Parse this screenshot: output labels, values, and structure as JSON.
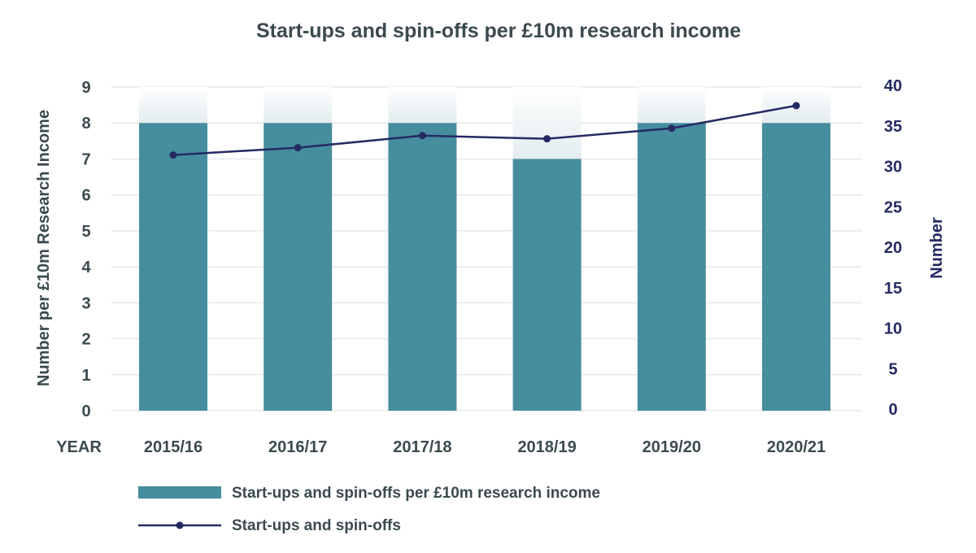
{
  "chart_data": {
    "type": "bar+line",
    "title": "Start-ups and spin-offs per £10m research income",
    "xlabel": "YEAR",
    "ylabel_left": "Number per £10m Research Income",
    "ylabel_right": "Number",
    "categories": [
      "2015/16",
      "2016/17",
      "2017/18",
      "2018/19",
      "2019/20",
      "2020/21"
    ],
    "ylim_left": [
      0,
      9
    ],
    "ylim_right": [
      0,
      40
    ],
    "yticks_left": [
      "0",
      "1",
      "2",
      "3",
      "4",
      "5",
      "6",
      "7",
      "8",
      "9"
    ],
    "yticks_right": [
      "0",
      "5",
      "10",
      "15",
      "20",
      "25",
      "30",
      "35",
      "40"
    ],
    "grid": true,
    "legend_placement": "bottom-left",
    "series": [
      {
        "name": "Start-ups and spin-offs per £10m research income",
        "type": "bar",
        "axis": "left",
        "color": "#468d9e",
        "values": [
          8,
          8,
          8,
          7,
          8,
          8
        ]
      },
      {
        "name": "Start-ups and spin-offs",
        "type": "line",
        "axis": "right",
        "color": "#252a63",
        "values": [
          31.6,
          32.5,
          34.0,
          33.6,
          34.9,
          37.7
        ]
      }
    ]
  }
}
